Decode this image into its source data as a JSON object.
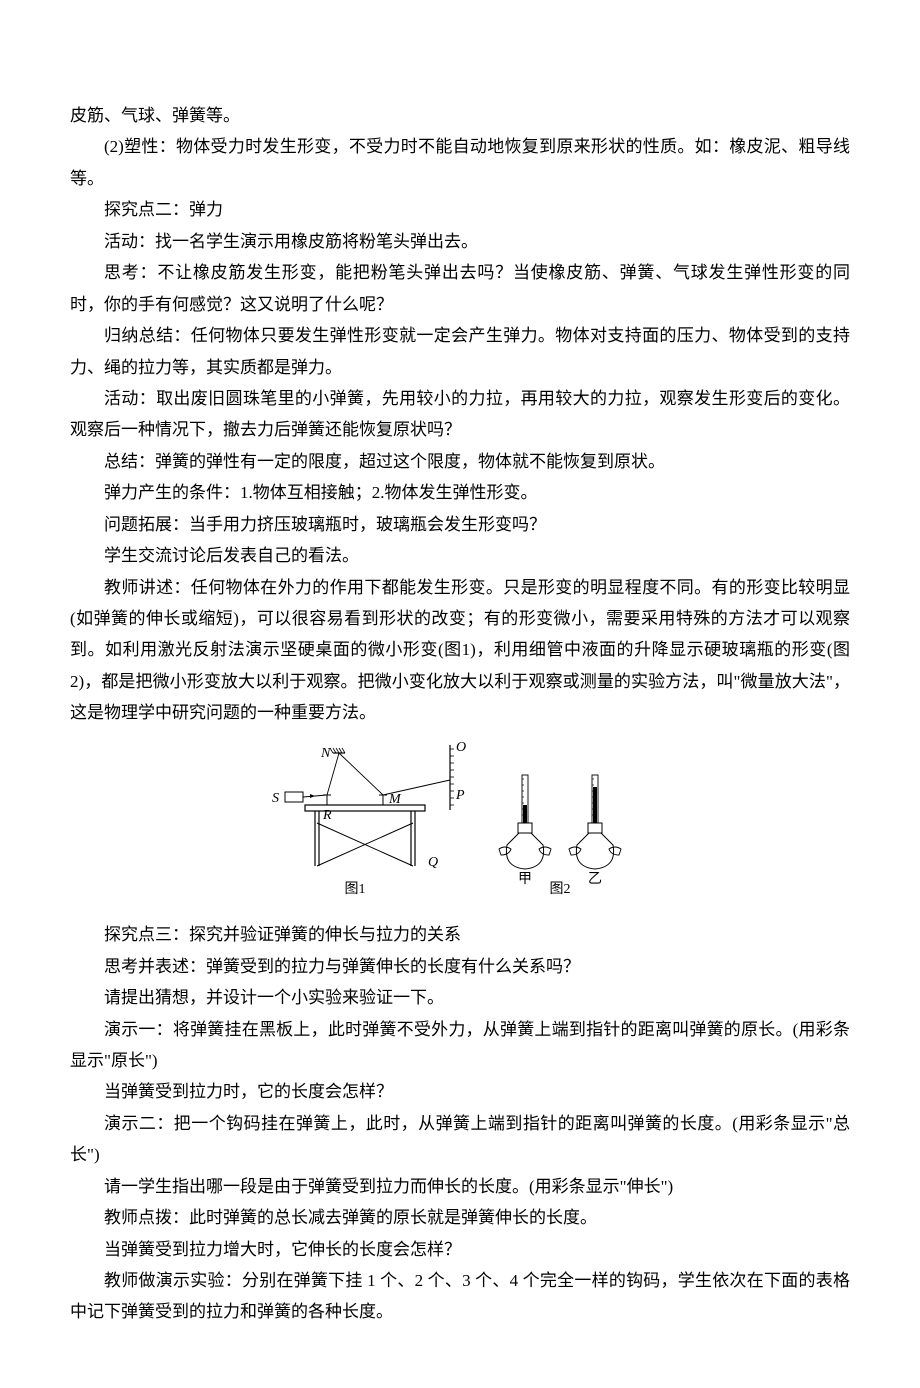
{
  "paragraphs": {
    "p1": "皮筋、气球、弹簧等。",
    "p2": "(2)塑性：物体受力时发生形变，不受力时不能自动地恢复到原来形状的性质。如：橡皮泥、粗导线等。",
    "p3": "探究点二：弹力",
    "p4": "活动：找一名学生演示用橡皮筋将粉笔头弹出去。",
    "p5": "思考：不让橡皮筋发生形变，能把粉笔头弹出去吗？当使橡皮筋、弹簧、气球发生弹性形变的同时，你的手有何感觉？这又说明了什么呢？",
    "p6": "归纳总结：任何物体只要发生弹性形变就一定会产生弹力。物体对支持面的压力、物体受到的支持力、绳的拉力等，其实质都是弹力。",
    "p7": "活动：取出废旧圆珠笔里的小弹簧，先用较小的力拉，再用较大的力拉，观察发生形变后的变化。观察后一种情况下，撤去力后弹簧还能恢复原状吗？",
    "p8": "总结：弹簧的弹性有一定的限度，超过这个限度，物体就不能恢复到原状。",
    "p9": "弹力产生的条件：1.物体互相接触；2.物体发生弹性形变。",
    "p10": "问题拓展：当手用力挤压玻璃瓶时，玻璃瓶会发生形变吗？",
    "p11": "学生交流讨论后发表自己的看法。",
    "p12": "教师讲述：任何物体在外力的作用下都能发生形变。只是形变的明显程度不同。有的形变比较明显(如弹簧的伸长或缩短)，可以很容易看到形状的改变；有的形变微小，需要采用特殊的方法才可以观察到。如利用激光反射法演示坚硬桌面的微小形变(图1)，利用细管中液面的升降显示硬玻璃瓶的形变(图2)，都是把微小形变放大以利于观察。把微小变化放大以利于观察或测量的实验方法，叫\"微量放大法\"，这是物理学中研究问题的一种重要方法。",
    "p13": "探究点三：探究并验证弹簧的伸长与拉力的关系",
    "p14": "思考并表述：弹簧受到的拉力与弹簧伸长的长度有什么关系吗？",
    "p15": "请提出猜想，并设计一个小实验来验证一下。",
    "p16": "演示一：将弹簧挂在黑板上，此时弹簧不受外力，从弹簧上端到指针的距离叫弹簧的原长。(用彩条显示\"原长\")",
    "p17": "当弹簧受到拉力时，它的长度会怎样？",
    "p18": "演示二：把一个钩码挂在弹簧上，此时，从弹簧上端到指针的距离叫弹簧的长度。(用彩条显示\"总长\")",
    "p19": "请一学生指出哪一段是由于弹簧受到拉力而伸长的长度。(用彩条显示\"伸长\")",
    "p20": "教师点拨：此时弹簧的总长减去弹簧的原长就是弹簧伸长的长度。",
    "p21": "当弹簧受到拉力增大时，它伸长的长度会怎样？",
    "p22": "教师做演示实验：分别在弹簧下挂 1 个、2 个、3 个、4 个完全一样的钩码，学生依次在下面的表格中记下弹簧受到的拉力和弹簧的各种长度。"
  },
  "figure": {
    "label1": "图1",
    "label2": "图2",
    "letterN": "N",
    "letterO": "O",
    "letterS": "S",
    "letterR": "R",
    "letterM": "M",
    "letterP": "P",
    "letterQ": "Q",
    "jia": "甲",
    "yi": "乙",
    "line_color": "#000000",
    "hatch_color": "#000000",
    "fig_width": 380,
    "fig_height": 170,
    "font_size": 14,
    "font_family": "SimSun, serif",
    "italic_family": "Times New Roman, serif"
  }
}
